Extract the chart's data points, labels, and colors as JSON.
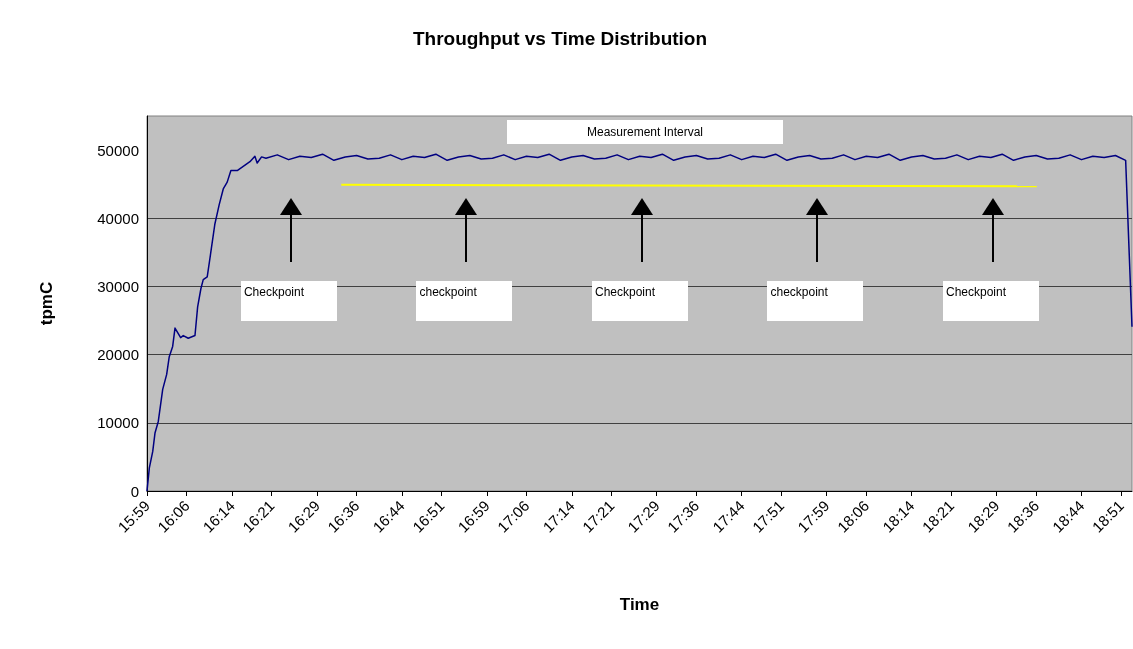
{
  "chart_data": {
    "type": "line",
    "title": "Throughput vs Time Distribution",
    "xlabel": "Time",
    "ylabel": "tpmC",
    "annotations": [
      "Measurement Interval",
      "Checkpoint",
      "checkpoint",
      "Checkpoint",
      "checkpoint",
      "Checkpoint"
    ],
    "xlim": [
      15.9833,
      18.882
    ],
    "xticks": [
      {
        "value": 15.9833,
        "label": "15:59"
      },
      {
        "value": 16.1,
        "label": "16:06"
      },
      {
        "value": 16.2333,
        "label": "16:14"
      },
      {
        "value": 16.35,
        "label": "16:21"
      },
      {
        "value": 16.4833,
        "label": "16:29"
      },
      {
        "value": 16.6,
        "label": "16:36"
      },
      {
        "value": 16.7333,
        "label": "16:44"
      },
      {
        "value": 16.85,
        "label": "16:51"
      },
      {
        "value": 16.9833,
        "label": "16:59"
      },
      {
        "value": 17.1,
        "label": "17:06"
      },
      {
        "value": 17.2333,
        "label": "17:14"
      },
      {
        "value": 17.35,
        "label": "17:21"
      },
      {
        "value": 17.4833,
        "label": "17:29"
      },
      {
        "value": 17.6,
        "label": "17:36"
      },
      {
        "value": 17.7333,
        "label": "17:44"
      },
      {
        "value": 17.85,
        "label": "17:51"
      },
      {
        "value": 17.9833,
        "label": "17:59"
      },
      {
        "value": 18.1,
        "label": "18:06"
      },
      {
        "value": 18.2333,
        "label": "18:14"
      },
      {
        "value": 18.35,
        "label": "18:21"
      },
      {
        "value": 18.4833,
        "label": "18:29"
      },
      {
        "value": 18.6,
        "label": "18:36"
      },
      {
        "value": 18.7333,
        "label": "18:44"
      },
      {
        "value": 18.85,
        "label": "18:51"
      }
    ],
    "ylim": [
      0,
      55000
    ],
    "yticks": [
      0,
      10000,
      20000,
      30000,
      40000,
      50000
    ],
    "grid": "y",
    "marker": "none",
    "line_style": "solid",
    "series": [
      {
        "color": "#000080",
        "x": [
          15.9833,
          15.9902,
          16.0002,
          16.0068,
          16.0165,
          16.0295,
          16.0412,
          16.0488,
          16.0588,
          16.0657,
          16.0823,
          16.09,
          16.1047,
          16.1245,
          16.1323,
          16.142,
          16.1488,
          16.1605,
          16.1705,
          16.1832,
          16.1958,
          16.2077,
          16.2193,
          16.2302,
          16.2488,
          16.2665,
          16.2862,
          16.3008,
          16.3075,
          16.3205,
          16.3333,
          16.3667,
          16.4,
          16.4333,
          16.4667,
          16.5,
          16.5333,
          16.5667,
          16.6,
          16.6333,
          16.6667,
          16.7,
          16.7333,
          16.7667,
          16.8,
          16.8333,
          16.8667,
          16.9,
          16.9333,
          16.9667,
          17,
          17.0333,
          17.0667,
          17.1,
          17.1333,
          17.1667,
          17.2,
          17.2333,
          17.2667,
          17.3,
          17.3333,
          17.3667,
          17.4,
          17.4333,
          17.4667,
          17.5,
          17.5333,
          17.5667,
          17.6,
          17.6333,
          17.6667,
          17.7,
          17.7333,
          17.7667,
          17.8,
          17.8333,
          17.8667,
          17.9,
          17.9333,
          17.9667,
          18,
          18.0333,
          18.0667,
          18.1,
          18.1333,
          18.1667,
          18.2,
          18.2333,
          18.2667,
          18.3,
          18.3333,
          18.3667,
          18.4,
          18.4333,
          18.4667,
          18.5,
          18.5333,
          18.5667,
          18.6,
          18.6333,
          18.6667,
          18.7,
          18.7333,
          18.7667,
          18.8,
          18.8333,
          18.8633,
          18.8633,
          18.882
        ],
        "values": [
          0,
          3400,
          5800,
          8500,
          10200,
          14900,
          17100,
          19700,
          21200,
          23900,
          22500,
          22800,
          22400,
          22800,
          27000,
          29700,
          31000,
          31400,
          34800,
          39200,
          42000,
          44300,
          45300,
          47000,
          47000,
          47600,
          48300,
          49100,
          48100,
          49000,
          48800,
          49300,
          48600,
          49100,
          48900,
          49400,
          48500,
          49000,
          49200,
          48700,
          48800,
          49300,
          48600,
          49100,
          48900,
          49400,
          48500,
          49000,
          49200,
          48700,
          48800,
          49300,
          48600,
          49100,
          48900,
          49400,
          48500,
          49000,
          49200,
          48700,
          48800,
          49300,
          48600,
          49100,
          48900,
          49400,
          48500,
          49000,
          49200,
          48700,
          48800,
          49300,
          48600,
          49100,
          48900,
          49400,
          48500,
          49000,
          49200,
          48700,
          48800,
          49300,
          48600,
          49100,
          48900,
          49400,
          48500,
          49000,
          49200,
          48700,
          48800,
          49300,
          48600,
          49100,
          48900,
          49400,
          48500,
          49000,
          49200,
          48700,
          48800,
          49300,
          48600,
          49100,
          48900,
          49200,
          48500,
          48500,
          24100
        ]
      },
      {
        "color": "#ffff00",
        "x": [
          16.555,
          18.6017
        ],
        "values": [
          44900,
          44700
        ]
      }
    ]
  }
}
